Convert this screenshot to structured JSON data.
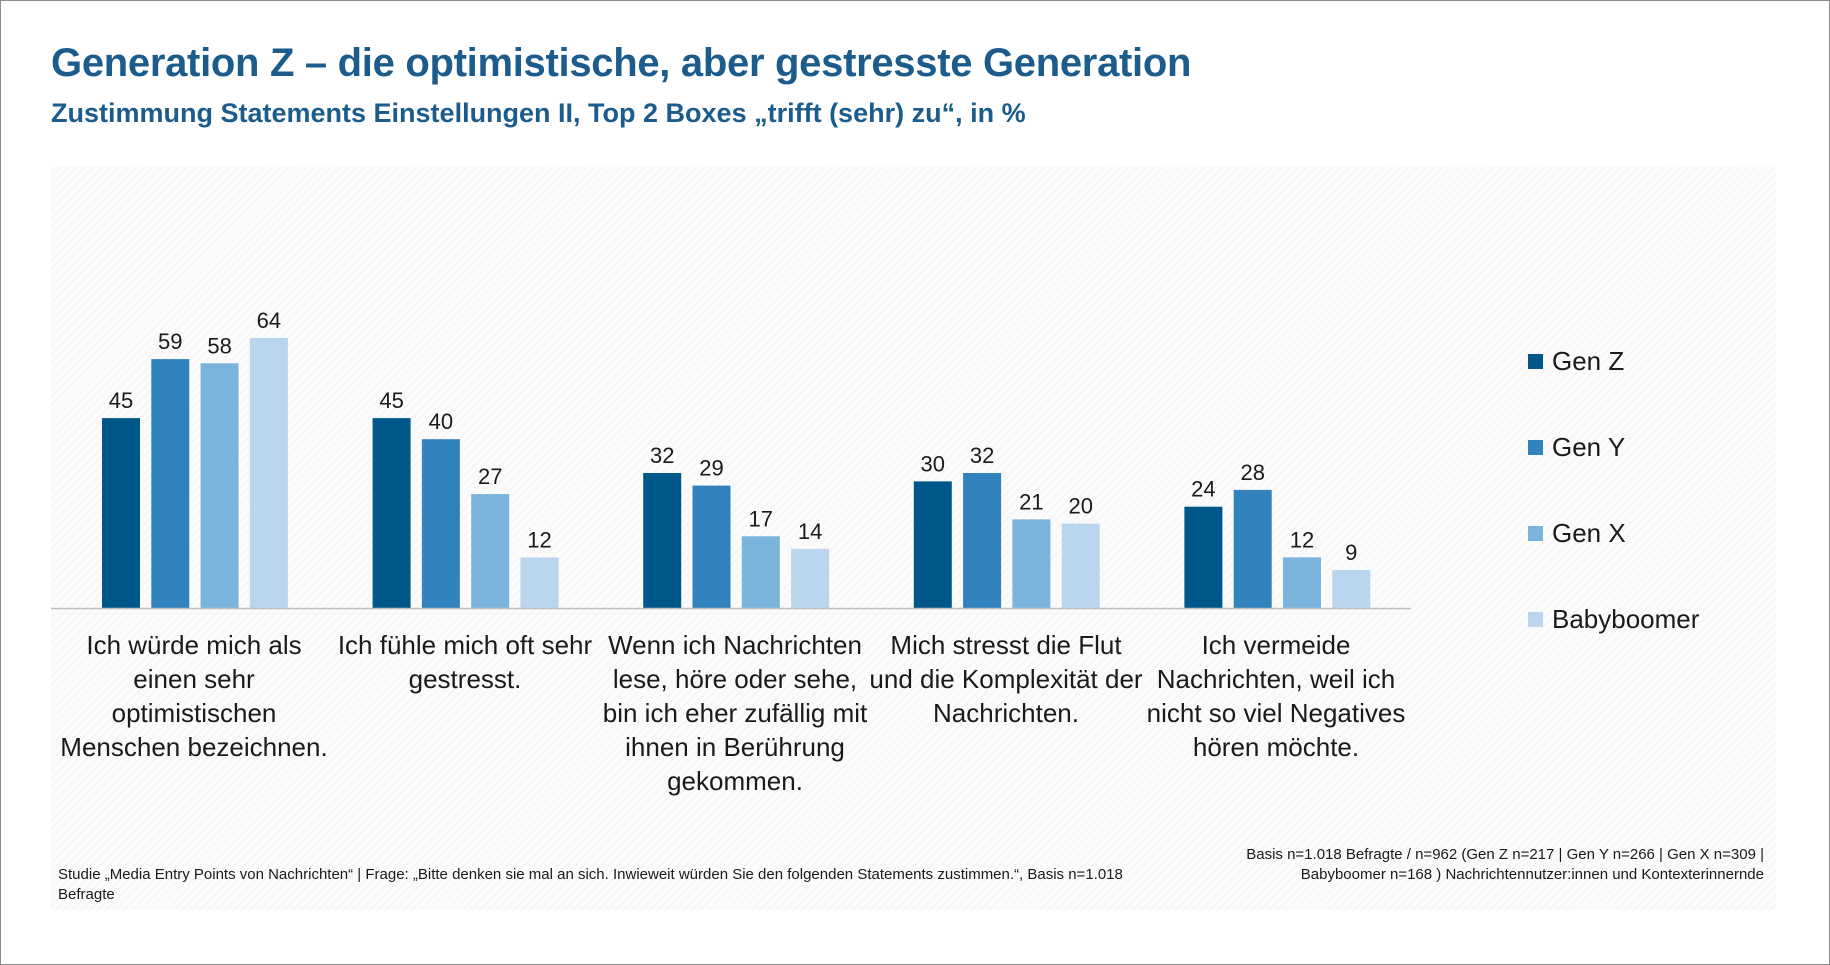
{
  "header": {
    "title": "Generation Z – die optimistische, aber gestresste Generation",
    "subtitle": "Zustimmung Statements Einstellungen II, Top 2 Boxes „trifft (sehr) zu“, in %"
  },
  "colors": {
    "gen_z": "#00578a",
    "gen_y": "#3182bd",
    "gen_x": "#7ab4dc",
    "babyboomer": "#bad6ee",
    "axis": "#bfbfbf",
    "title": "#1b5c8d"
  },
  "chart_data": {
    "type": "bar",
    "title": "Generation Z – die optimistische, aber gestresste Generation",
    "subtitle": "Zustimmung Statements Einstellungen II, Top 2 Boxes „trifft (sehr) zu“, in %",
    "xlabel": "",
    "ylabel": "",
    "ylim": [
      0,
      70
    ],
    "grid": false,
    "legend_position": "right",
    "categories": [
      "Ich würde mich als einen sehr optimistischen Menschen bezeichnen.",
      "Ich fühle mich oft sehr gestresst.",
      "Wenn ich Nachrichten lese, höre oder sehe, bin ich eher zufällig mit ihnen in Berührung gekommen.",
      "Mich stresst die Flut und die Komplexität der Nachrichten.",
      "Ich vermeide Nachrichten, weil ich nicht so viel Negatives hören möchte."
    ],
    "series": [
      {
        "name": "Gen Z",
        "color": "#00578a",
        "values": [
          45,
          45,
          32,
          30,
          24
        ]
      },
      {
        "name": "Gen Y",
        "color": "#3182bd",
        "values": [
          59,
          40,
          29,
          32,
          28
        ]
      },
      {
        "name": "Gen X",
        "color": "#7ab4dc",
        "values": [
          58,
          27,
          17,
          21,
          12
        ]
      },
      {
        "name": "Babyboomer",
        "color": "#bad6ee",
        "values": [
          64,
          12,
          14,
          20,
          9
        ]
      }
    ]
  },
  "footnotes": {
    "left": "Studie „Media Entry Points von Nachrichten“ | Frage: „Bitte denken sie mal an sich. Inwieweit würden Sie den folgenden Statements zustimmen.“, Basis n=1.018 Befragte",
    "right": "Basis n=1.018 Befragte / n=962 (Gen Z n=217 | Gen Y n=266 | Gen X n=309 | Babyboomer n=168 ) Nachrichtennutzer:innen und Kontexterinnernde"
  }
}
